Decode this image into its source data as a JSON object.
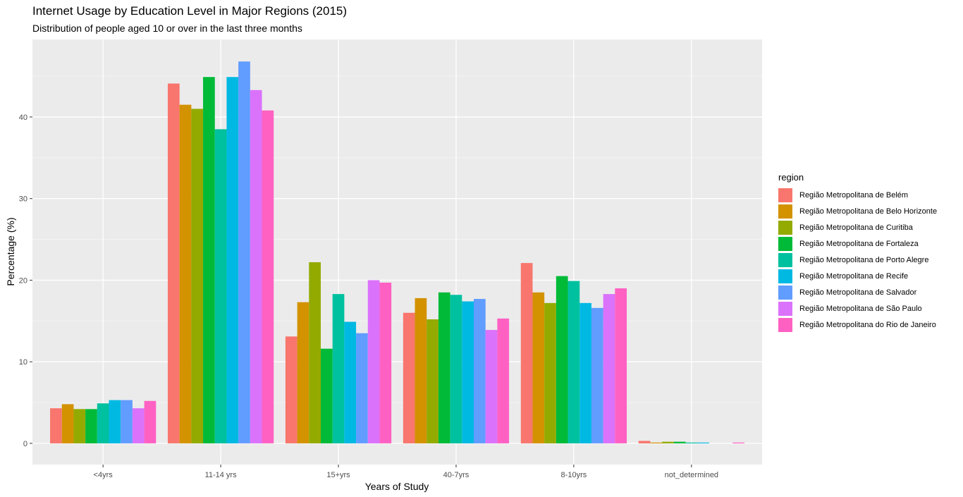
{
  "chart_data": {
    "type": "bar",
    "title": "Internet Usage by Education Level in Major Regions (2015)",
    "subtitle": "Distribution of people aged 10 or over in the last three months",
    "xlabel": "Years of Study",
    "ylabel": "Percentage (%)",
    "ylim": [
      -2.6,
      49.5
    ],
    "yticks": [
      0,
      10,
      20,
      30,
      40
    ],
    "grid": true,
    "legend_title": "region",
    "legend_position": "right",
    "categories": [
      "<4yrs",
      "11-14 yrs",
      "15+yrs",
      "40-7yrs",
      "8-10yrs",
      "not_determined"
    ],
    "series": [
      {
        "name": "Região Metropolitana de Belém",
        "color": "#F8766D",
        "values": [
          4.3,
          44.1,
          13.1,
          16.0,
          22.1,
          0.3
        ]
      },
      {
        "name": "Região Metropolitana de Belo Horizonte",
        "color": "#D39200",
        "values": [
          4.8,
          41.5,
          17.3,
          17.8,
          18.5,
          0.1
        ]
      },
      {
        "name": "Região Metropolitana de Curitiba",
        "color": "#93AA00",
        "values": [
          4.2,
          41.0,
          22.2,
          15.2,
          17.2,
          0.2
        ]
      },
      {
        "name": "Região Metropolitana de Fortaleza",
        "color": "#00BA38",
        "values": [
          4.2,
          44.9,
          11.6,
          18.5,
          20.5,
          0.2
        ]
      },
      {
        "name": "Região Metropolitana de Porto Alegre",
        "color": "#00C19F",
        "values": [
          4.9,
          38.5,
          18.3,
          18.2,
          19.9,
          0.1
        ]
      },
      {
        "name": "Região Metropolitana de Recife",
        "color": "#00B9E3",
        "values": [
          5.3,
          44.9,
          14.9,
          17.4,
          17.2,
          0.1
        ]
      },
      {
        "name": "Região Metropolitana de Salvador",
        "color": "#619CFF",
        "values": [
          5.3,
          46.8,
          13.5,
          17.7,
          16.6,
          0.0
        ]
      },
      {
        "name": "Região Metropolitana de São Paulo",
        "color": "#DB72FB",
        "values": [
          4.3,
          43.3,
          20.0,
          13.9,
          18.3,
          0.0
        ]
      },
      {
        "name": "Região Metropolitana do Rio de Janeiro",
        "color": "#FF61C3",
        "values": [
          5.2,
          40.8,
          19.7,
          15.3,
          19.0,
          0.1
        ]
      }
    ]
  }
}
